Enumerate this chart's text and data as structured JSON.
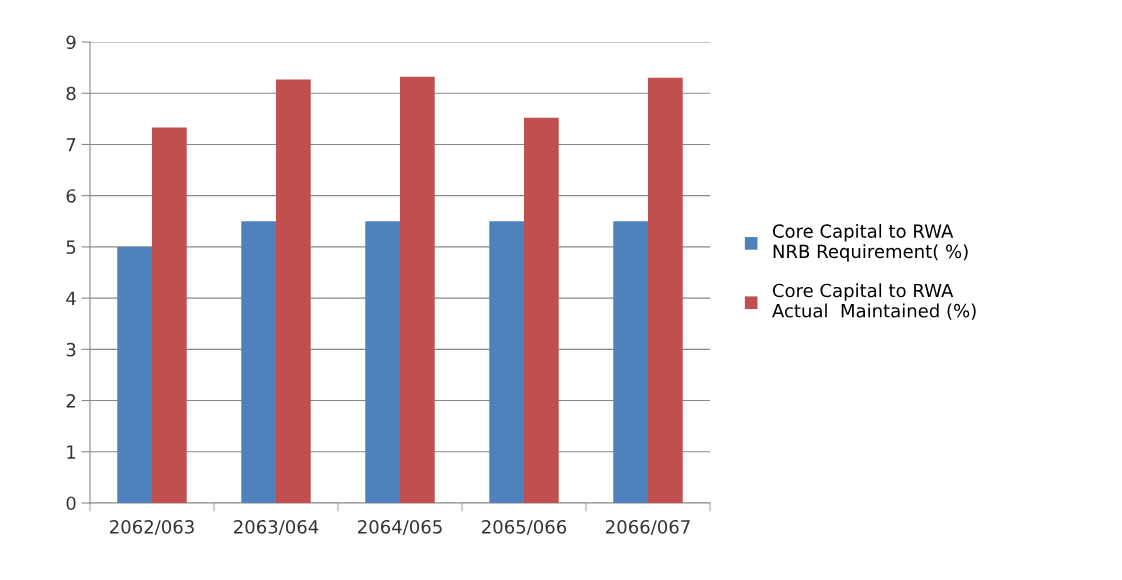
{
  "chart_data": {
    "type": "bar",
    "categories": [
      "2062/063",
      "2063/064",
      "2064/065",
      "2065/066",
      "2066/067"
    ],
    "series": [
      {
        "name": "Core Capital to RWA NRB Requirement( %)",
        "color": "#4f81bd",
        "values": [
          5,
          5.5,
          5.5,
          5.5,
          5.5
        ]
      },
      {
        "name": "Core Capital to RWA Actual  Maintained (%)",
        "color": "#c0504d",
        "values": [
          7.33,
          8.27,
          8.32,
          7.52,
          8.3
        ]
      }
    ],
    "ylim": [
      0,
      9
    ],
    "yticks": [
      0,
      1,
      2,
      3,
      4,
      5,
      6,
      7,
      8,
      9
    ],
    "grid": "y",
    "legend": "right"
  }
}
